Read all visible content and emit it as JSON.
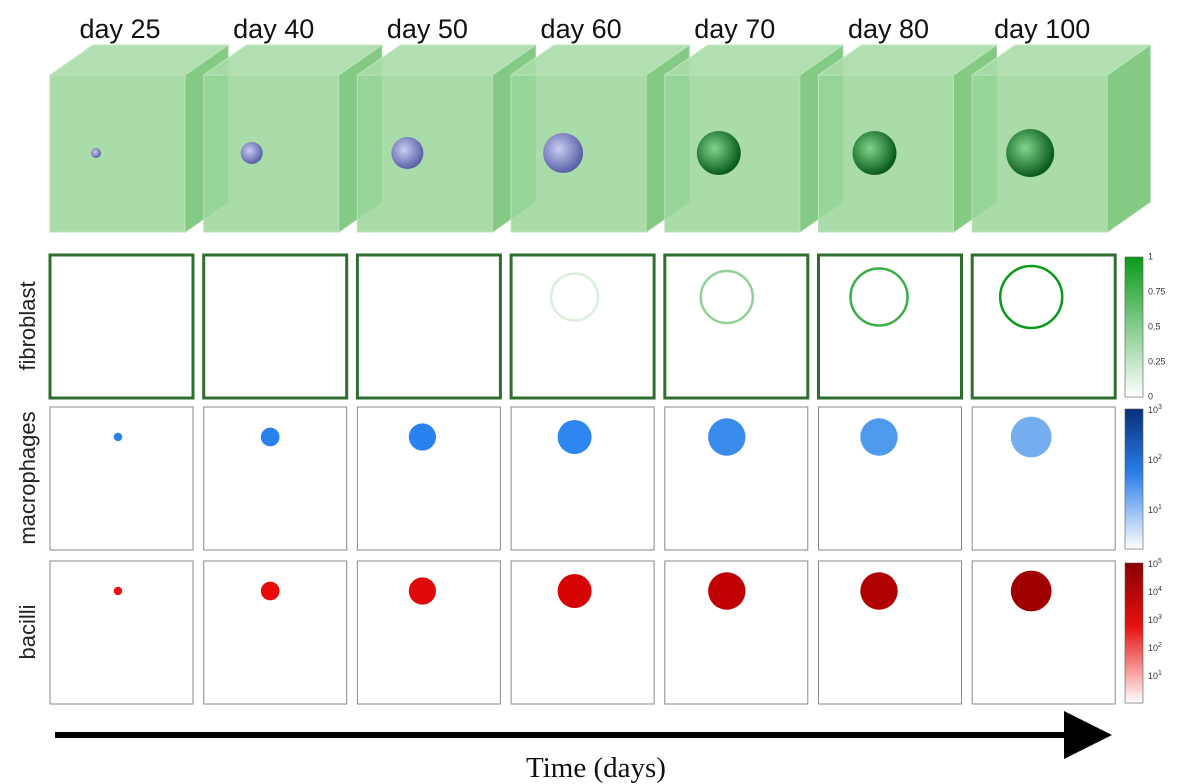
{
  "columns": [
    "day 25",
    "day 40",
    "day 50",
    "day 60",
    "day 70",
    "day 80",
    "day 100"
  ],
  "rows": [
    {
      "label": "fibroblast",
      "colorbar": {
        "ticks": [
          "1",
          "0.75",
          "0.5",
          "0.25",
          "0"
        ]
      }
    },
    {
      "label": "macrophages",
      "colorbar": {
        "ticks": [
          {
            "base": "10",
            "exp": "3"
          },
          {
            "base": "10",
            "exp": "2"
          },
          {
            "base": "10",
            "exp": "1"
          }
        ]
      }
    },
    {
      "label": "bacilli",
      "colorbar": {
        "ticks": [
          {
            "base": "10",
            "exp": "5"
          },
          {
            "base": "10",
            "exp": "4"
          },
          {
            "base": "10",
            "exp": "3"
          },
          {
            "base": "10",
            "exp": "2"
          },
          {
            "base": "10",
            "exp": "1"
          }
        ]
      }
    }
  ],
  "x_axis": {
    "label": "Time (days)"
  }
}
